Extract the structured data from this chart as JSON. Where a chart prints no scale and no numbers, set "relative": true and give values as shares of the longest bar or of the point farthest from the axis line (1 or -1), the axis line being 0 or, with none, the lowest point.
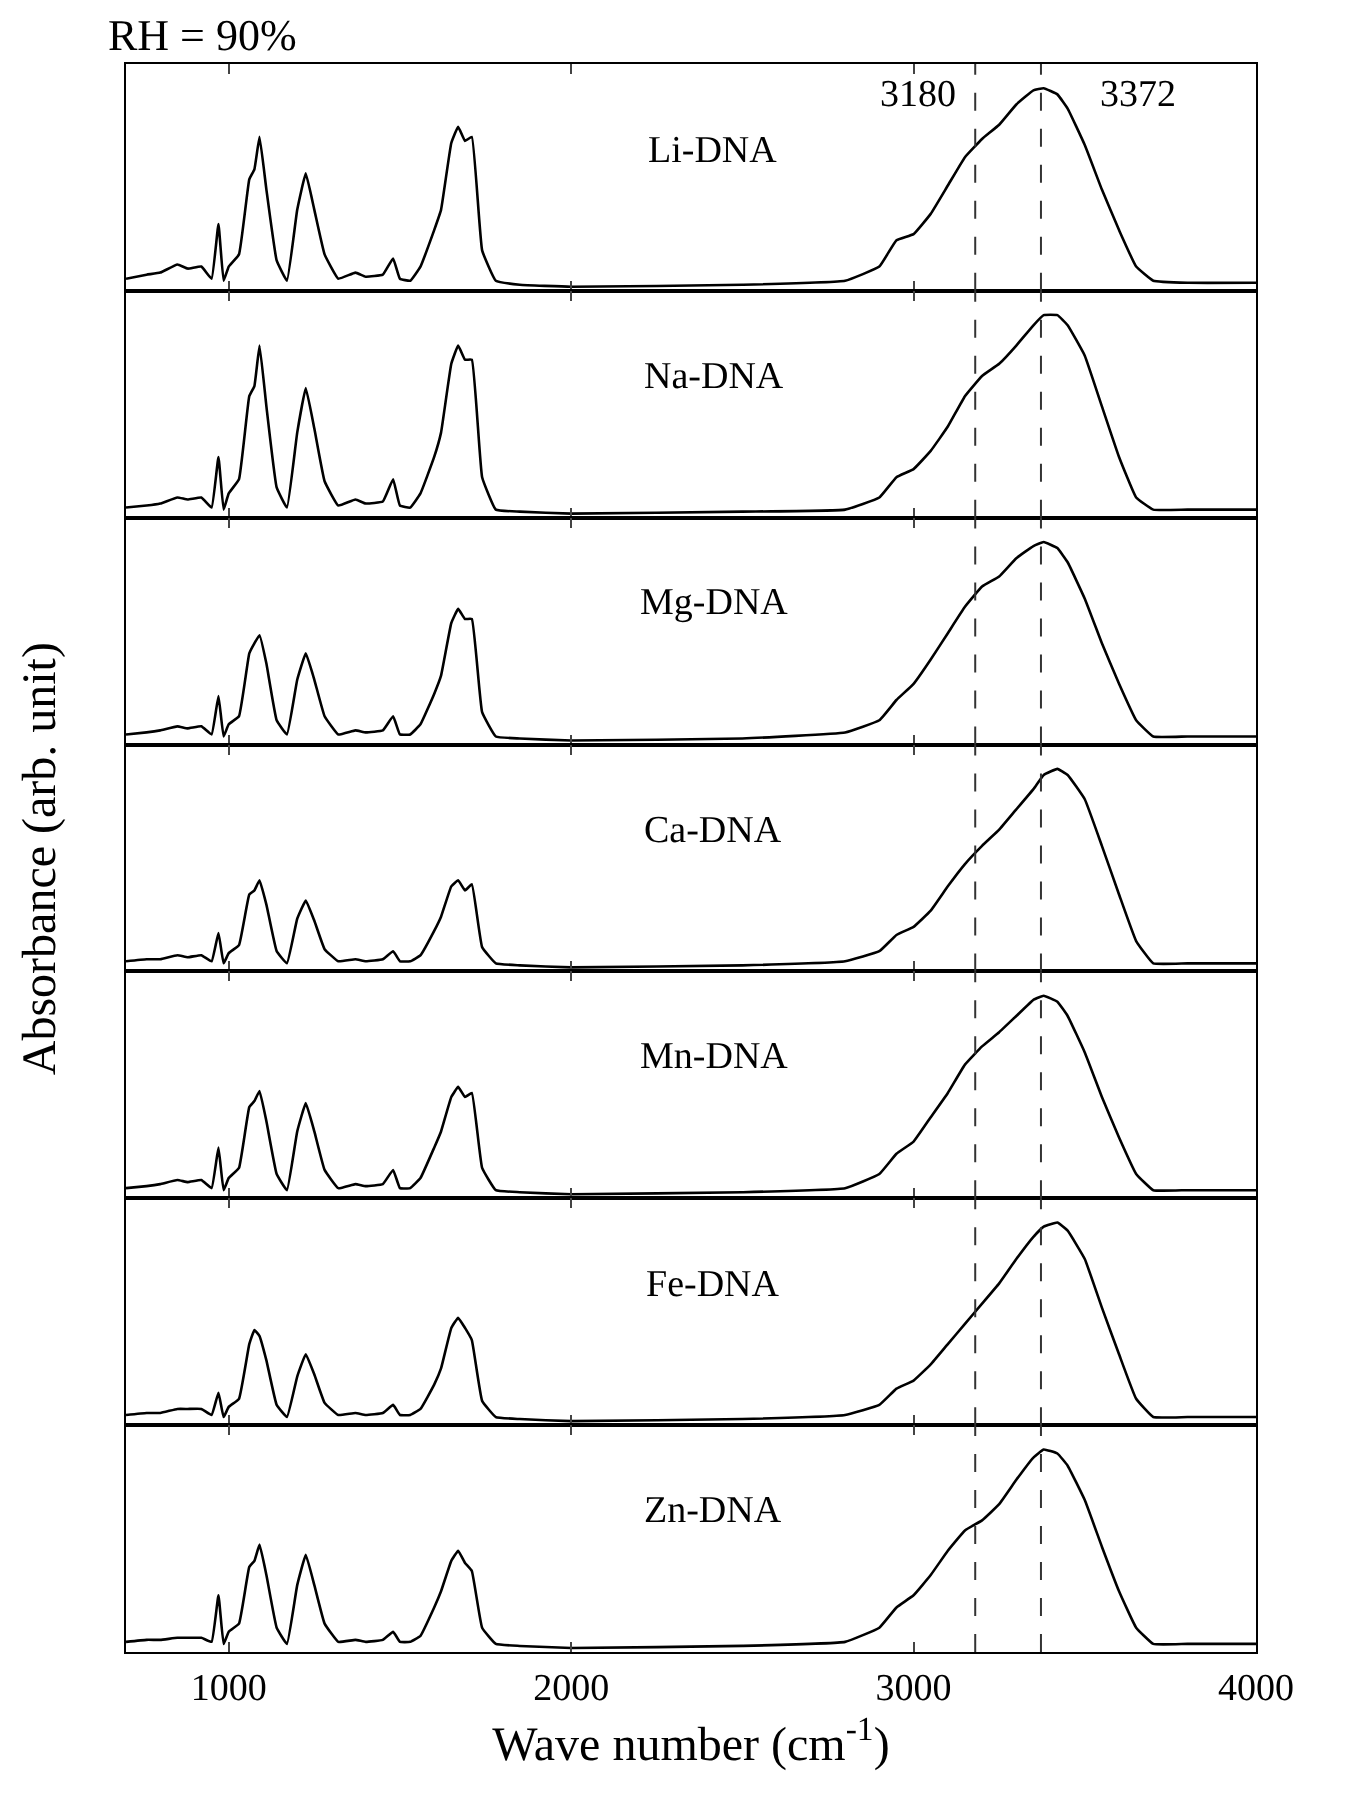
{
  "chart_data": [
    {
      "type": "line",
      "relative": true,
      "title": "RH = 90%",
      "xlim": [
        700,
        4000
      ],
      "xticks": [
        1000,
        2000,
        3000,
        4000
      ],
      "tick_labels": false,
      "ref_lines": [
        {
          "axis": "x",
          "value": 3180,
          "label": "3180",
          "line_style": "dashed",
          "color": "#333333"
        },
        {
          "axis": "x",
          "value": 3372,
          "label": "3372",
          "line_style": "dashed",
          "color": "#333333"
        }
      ],
      "x": [
        700,
        760,
        800,
        850,
        880,
        920,
        950,
        970,
        985,
        1000,
        1030,
        1060,
        1075,
        1090,
        1110,
        1140,
        1170,
        1200,
        1225,
        1250,
        1280,
        1320,
        1370,
        1400,
        1450,
        1480,
        1500,
        1530,
        1560,
        1600,
        1620,
        1650,
        1670,
        1690,
        1710,
        1740,
        1780,
        1850,
        2000,
        2500,
        2800,
        2900,
        2950,
        3000,
        3050,
        3100,
        3150,
        3200,
        3250,
        3300,
        3350,
        3380,
        3420,
        3450,
        3500,
        3550,
        3600,
        3650,
        3700,
        3800,
        4000
      ],
      "series": [
        {
          "name": "Li-DNA",
          "color": "#000000",
          "values": [
            0.06,
            0.08,
            0.09,
            0.13,
            0.11,
            0.12,
            0.06,
            0.33,
            0.05,
            0.12,
            0.18,
            0.55,
            0.6,
            0.76,
            0.5,
            0.15,
            0.05,
            0.4,
            0.58,
            0.4,
            0.18,
            0.06,
            0.09,
            0.07,
            0.08,
            0.16,
            0.06,
            0.05,
            0.12,
            0.3,
            0.4,
            0.73,
            0.81,
            0.74,
            0.76,
            0.2,
            0.05,
            0.03,
            0.02,
            0.03,
            0.05,
            0.12,
            0.25,
            0.28,
            0.38,
            0.52,
            0.66,
            0.75,
            0.82,
            0.92,
            0.99,
            1,
            0.97,
            0.9,
            0.72,
            0.5,
            0.3,
            0.12,
            0.05,
            0.04,
            0.04
          ]
        }
      ]
    },
    {
      "type": "line",
      "relative": true,
      "xlim": [
        700,
        4000
      ],
      "xticks": [
        1000,
        2000,
        3000,
        4000
      ],
      "tick_labels": false,
      "ref_lines": [
        {
          "axis": "x",
          "value": 3180,
          "line_style": "dashed",
          "color": "#333333"
        },
        {
          "axis": "x",
          "value": 3372,
          "line_style": "dashed",
          "color": "#333333"
        }
      ],
      "x": [
        700,
        760,
        800,
        850,
        880,
        920,
        950,
        970,
        985,
        1000,
        1030,
        1060,
        1075,
        1090,
        1110,
        1140,
        1170,
        1200,
        1225,
        1250,
        1280,
        1320,
        1370,
        1400,
        1450,
        1480,
        1500,
        1530,
        1560,
        1600,
        1620,
        1650,
        1670,
        1690,
        1710,
        1740,
        1780,
        1850,
        2000,
        2500,
        2800,
        2900,
        2950,
        3000,
        3050,
        3100,
        3150,
        3200,
        3250,
        3300,
        3350,
        3380,
        3420,
        3450,
        3500,
        3550,
        3600,
        3650,
        3700,
        3800,
        4000
      ],
      "series": [
        {
          "name": "Na-DNA",
          "color": "#000000",
          "values": [
            0.05,
            0.06,
            0.07,
            0.1,
            0.09,
            0.1,
            0.05,
            0.3,
            0.04,
            0.12,
            0.19,
            0.6,
            0.65,
            0.85,
            0.55,
            0.15,
            0.05,
            0.42,
            0.64,
            0.44,
            0.18,
            0.06,
            0.09,
            0.07,
            0.08,
            0.19,
            0.06,
            0.05,
            0.12,
            0.3,
            0.42,
            0.76,
            0.85,
            0.78,
            0.78,
            0.2,
            0.04,
            0.03,
            0.02,
            0.03,
            0.04,
            0.1,
            0.2,
            0.24,
            0.33,
            0.45,
            0.6,
            0.7,
            0.76,
            0.85,
            0.95,
            1,
            1,
            0.95,
            0.8,
            0.55,
            0.3,
            0.1,
            0.04,
            0.04,
            0.04
          ]
        }
      ]
    },
    {
      "type": "line",
      "relative": true,
      "xlim": [
        700,
        4000
      ],
      "xticks": [
        1000,
        2000,
        3000,
        4000
      ],
      "tick_labels": false,
      "ref_lines": [
        {
          "axis": "x",
          "value": 3180,
          "line_style": "dashed",
          "color": "#333333"
        },
        {
          "axis": "x",
          "value": 3372,
          "line_style": "dashed",
          "color": "#333333"
        }
      ],
      "x": [
        700,
        760,
        800,
        850,
        880,
        920,
        950,
        970,
        985,
        1000,
        1030,
        1060,
        1075,
        1090,
        1110,
        1140,
        1170,
        1200,
        1225,
        1250,
        1280,
        1320,
        1370,
        1400,
        1450,
        1480,
        1500,
        1530,
        1560,
        1600,
        1620,
        1650,
        1670,
        1690,
        1710,
        1740,
        1780,
        1850,
        2000,
        2500,
        2800,
        2900,
        2950,
        3000,
        3050,
        3100,
        3150,
        3200,
        3250,
        3300,
        3350,
        3380,
        3420,
        3450,
        3500,
        3550,
        3600,
        3650,
        3700,
        3800,
        4000
      ],
      "series": [
        {
          "name": "Mg-DNA",
          "color": "#000000",
          "values": [
            0.05,
            0.06,
            0.07,
            0.09,
            0.08,
            0.09,
            0.05,
            0.24,
            0.04,
            0.1,
            0.14,
            0.45,
            0.5,
            0.54,
            0.4,
            0.12,
            0.05,
            0.32,
            0.45,
            0.32,
            0.14,
            0.05,
            0.07,
            0.06,
            0.07,
            0.14,
            0.05,
            0.05,
            0.1,
            0.25,
            0.34,
            0.6,
            0.67,
            0.62,
            0.62,
            0.16,
            0.04,
            0.03,
            0.02,
            0.03,
            0.06,
            0.12,
            0.22,
            0.3,
            0.42,
            0.55,
            0.68,
            0.78,
            0.83,
            0.92,
            0.98,
            1,
            0.97,
            0.9,
            0.72,
            0.5,
            0.3,
            0.12,
            0.04,
            0.04,
            0.04
          ]
        }
      ]
    },
    {
      "type": "line",
      "relative": true,
      "xlim": [
        700,
        4000
      ],
      "xticks": [
        1000,
        2000,
        3000,
        4000
      ],
      "tick_labels": false,
      "ref_lines": [
        {
          "axis": "x",
          "value": 3180,
          "line_style": "dashed",
          "color": "#333333"
        },
        {
          "axis": "x",
          "value": 3372,
          "line_style": "dashed",
          "color": "#333333"
        }
      ],
      "x": [
        700,
        760,
        800,
        850,
        880,
        920,
        950,
        970,
        985,
        1000,
        1030,
        1060,
        1075,
        1090,
        1110,
        1140,
        1170,
        1200,
        1225,
        1250,
        1280,
        1320,
        1370,
        1400,
        1450,
        1480,
        1500,
        1530,
        1560,
        1600,
        1620,
        1650,
        1670,
        1690,
        1710,
        1740,
        1780,
        1850,
        2000,
        2500,
        2800,
        2900,
        2950,
        3000,
        3050,
        3100,
        3150,
        3200,
        3250,
        3300,
        3350,
        3380,
        3420,
        3450,
        3500,
        3550,
        3600,
        3650,
        3700,
        3800,
        4000
      ],
      "ylabel": "Absorbance (arb. unit)",
      "series": [
        {
          "name": "Ca-DNA",
          "color": "#000000",
          "values": [
            0.05,
            0.06,
            0.06,
            0.08,
            0.07,
            0.08,
            0.05,
            0.19,
            0.04,
            0.09,
            0.13,
            0.38,
            0.4,
            0.45,
            0.33,
            0.1,
            0.04,
            0.26,
            0.35,
            0.25,
            0.11,
            0.05,
            0.06,
            0.05,
            0.06,
            0.1,
            0.05,
            0.05,
            0.08,
            0.2,
            0.27,
            0.42,
            0.45,
            0.4,
            0.43,
            0.12,
            0.04,
            0.03,
            0.02,
            0.03,
            0.05,
            0.1,
            0.18,
            0.22,
            0.3,
            0.42,
            0.53,
            0.62,
            0.7,
            0.8,
            0.9,
            0.97,
            1,
            0.97,
            0.85,
            0.62,
            0.38,
            0.15,
            0.04,
            0.04,
            0.04
          ]
        }
      ]
    },
    {
      "type": "line",
      "relative": true,
      "xlim": [
        700,
        4000
      ],
      "xticks": [
        1000,
        2000,
        3000,
        4000
      ],
      "tick_labels": false,
      "ref_lines": [
        {
          "axis": "x",
          "value": 3180,
          "line_style": "dashed",
          "color": "#333333"
        },
        {
          "axis": "x",
          "value": 3372,
          "line_style": "dashed",
          "color": "#333333"
        }
      ],
      "x": [
        700,
        760,
        800,
        850,
        880,
        920,
        950,
        970,
        985,
        1000,
        1030,
        1060,
        1075,
        1090,
        1110,
        1140,
        1170,
        1200,
        1225,
        1250,
        1280,
        1320,
        1370,
        1400,
        1450,
        1480,
        1500,
        1530,
        1560,
        1600,
        1620,
        1650,
        1670,
        1690,
        1710,
        1740,
        1780,
        1850,
        2000,
        2500,
        2800,
        2900,
        2950,
        3000,
        3050,
        3100,
        3150,
        3200,
        3250,
        3300,
        3350,
        3380,
        3420,
        3450,
        3500,
        3550,
        3600,
        3650,
        3700,
        3800,
        4000
      ],
      "series": [
        {
          "name": "Mn-DNA",
          "color": "#000000",
          "values": [
            0.05,
            0.06,
            0.07,
            0.09,
            0.08,
            0.09,
            0.05,
            0.25,
            0.04,
            0.1,
            0.15,
            0.45,
            0.48,
            0.53,
            0.38,
            0.12,
            0.04,
            0.33,
            0.47,
            0.33,
            0.14,
            0.05,
            0.07,
            0.06,
            0.07,
            0.14,
            0.05,
            0.05,
            0.1,
            0.25,
            0.33,
            0.5,
            0.55,
            0.5,
            0.52,
            0.15,
            0.04,
            0.03,
            0.02,
            0.03,
            0.05,
            0.12,
            0.22,
            0.28,
            0.4,
            0.52,
            0.66,
            0.75,
            0.82,
            0.9,
            0.98,
            1,
            0.97,
            0.9,
            0.72,
            0.5,
            0.3,
            0.12,
            0.04,
            0.04,
            0.04
          ]
        }
      ]
    },
    {
      "type": "line",
      "relative": true,
      "xlim": [
        700,
        4000
      ],
      "xticks": [
        1000,
        2000,
        3000,
        4000
      ],
      "tick_labels": false,
      "ref_lines": [
        {
          "axis": "x",
          "value": 3180,
          "line_style": "dashed",
          "color": "#333333"
        },
        {
          "axis": "x",
          "value": 3372,
          "line_style": "dashed",
          "color": "#333333"
        }
      ],
      "x": [
        700,
        760,
        800,
        850,
        880,
        920,
        950,
        970,
        985,
        1000,
        1030,
        1060,
        1075,
        1090,
        1110,
        1140,
        1170,
        1200,
        1225,
        1250,
        1280,
        1320,
        1370,
        1400,
        1450,
        1480,
        1500,
        1530,
        1560,
        1600,
        1620,
        1650,
        1670,
        1690,
        1710,
        1740,
        1780,
        1850,
        2000,
        2500,
        2800,
        2900,
        2950,
        3000,
        3050,
        3100,
        3150,
        3200,
        3250,
        3300,
        3350,
        3380,
        3420,
        3450,
        3500,
        3550,
        3600,
        3650,
        3700,
        3800,
        4000
      ],
      "series": [
        {
          "name": "Fe-DNA",
          "color": "#000000",
          "values": [
            0.05,
            0.06,
            0.06,
            0.08,
            0.08,
            0.08,
            0.05,
            0.16,
            0.04,
            0.09,
            0.13,
            0.4,
            0.47,
            0.44,
            0.32,
            0.1,
            0.04,
            0.24,
            0.35,
            0.25,
            0.11,
            0.05,
            0.06,
            0.05,
            0.06,
            0.1,
            0.05,
            0.05,
            0.08,
            0.2,
            0.28,
            0.48,
            0.53,
            0.48,
            0.42,
            0.12,
            0.04,
            0.03,
            0.02,
            0.03,
            0.05,
            0.1,
            0.18,
            0.22,
            0.3,
            0.4,
            0.5,
            0.6,
            0.7,
            0.82,
            0.93,
            0.98,
            1,
            0.96,
            0.82,
            0.58,
            0.35,
            0.13,
            0.04,
            0.04,
            0.04
          ]
        }
      ]
    },
    {
      "type": "line",
      "relative": true,
      "xlabel": "Wave number (cm$^{-1}$)",
      "xlim": [
        700,
        4000
      ],
      "xticks": [
        1000,
        2000,
        3000,
        4000
      ],
      "tick_labels": "x",
      "ref_lines": [
        {
          "axis": "x",
          "value": 3180,
          "line_style": "dashed",
          "color": "#333333"
        },
        {
          "axis": "x",
          "value": 3372,
          "line_style": "dashed",
          "color": "#333333"
        }
      ],
      "x": [
        700,
        760,
        800,
        850,
        880,
        920,
        950,
        970,
        985,
        1000,
        1030,
        1060,
        1075,
        1090,
        1110,
        1140,
        1170,
        1200,
        1225,
        1250,
        1280,
        1320,
        1370,
        1400,
        1450,
        1480,
        1500,
        1530,
        1560,
        1600,
        1620,
        1650,
        1670,
        1690,
        1710,
        1740,
        1780,
        1850,
        2000,
        2500,
        2800,
        2900,
        2950,
        3000,
        3050,
        3100,
        3150,
        3200,
        3250,
        3300,
        3350,
        3380,
        3420,
        3450,
        3500,
        3550,
        3600,
        3650,
        3700,
        3800,
        4000
      ],
      "series": [
        {
          "name": "Zn-DNA",
          "color": "#000000",
          "values": [
            0.05,
            0.06,
            0.06,
            0.07,
            0.07,
            0.07,
            0.05,
            0.28,
            0.04,
            0.1,
            0.14,
            0.42,
            0.45,
            0.53,
            0.38,
            0.12,
            0.04,
            0.33,
            0.48,
            0.33,
            0.14,
            0.05,
            0.06,
            0.05,
            0.06,
            0.1,
            0.05,
            0.05,
            0.08,
            0.22,
            0.3,
            0.45,
            0.5,
            0.44,
            0.4,
            0.12,
            0.04,
            0.03,
            0.02,
            0.03,
            0.05,
            0.12,
            0.22,
            0.28,
            0.38,
            0.5,
            0.6,
            0.65,
            0.73,
            0.85,
            0.96,
            1,
            0.98,
            0.92,
            0.75,
            0.52,
            0.3,
            0.12,
            0.04,
            0.04,
            0.04
          ]
        }
      ]
    }
  ]
}
